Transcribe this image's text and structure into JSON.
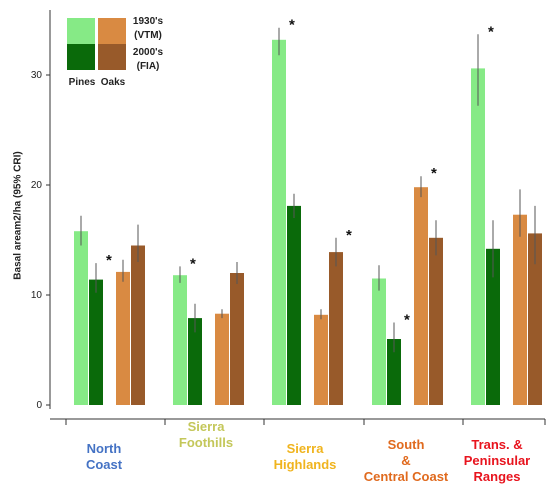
{
  "chart_data": {
    "type": "bar",
    "ylabel": "Basal aream2/ha (95% CRI)",
    "ylim": [
      0,
      35
    ],
    "yticks": [
      0,
      10,
      20,
      30
    ],
    "categories": [
      "North\nCoast",
      "Sierra\nFoothills",
      "Sierra\nHighlands",
      "South\n&\nCentral Coast",
      "Trans. &\nPeninsular\nRanges"
    ],
    "category_colors": [
      "#4472c4",
      "#c4c75a",
      "#f0b41e",
      "#e06a1e",
      "#e8141e"
    ],
    "series": [
      {
        "name": "Pines 1930's (VTM)",
        "color": "#86ea86",
        "values": [
          15.8,
          11.8,
          33.2,
          11.5,
          30.6
        ],
        "err_low": [
          14.5,
          11.1,
          31.8,
          10.4,
          27.2
        ],
        "err_high": [
          17.2,
          12.6,
          34.3,
          12.7,
          33.7
        ],
        "sig": [
          false,
          true,
          true,
          false,
          true
        ]
      },
      {
        "name": "Pines 2000's (FIA)",
        "color": "#0a6a0a",
        "values": [
          11.4,
          7.9,
          18.1,
          6.0,
          14.2
        ],
        "err_low": [
          10.2,
          6.6,
          17.0,
          4.8,
          11.6
        ],
        "err_high": [
          12.9,
          9.2,
          19.2,
          7.5,
          16.8
        ],
        "sig": [
          true,
          false,
          false,
          true,
          false
        ]
      },
      {
        "name": "Oaks 1930's (VTM)",
        "color": "#d98a42",
        "values": [
          12.1,
          8.3,
          8.2,
          19.8,
          17.3
        ],
        "err_low": [
          11.2,
          7.9,
          7.8,
          18.9,
          15.3
        ],
        "err_high": [
          13.2,
          8.7,
          8.7,
          20.8,
          19.6
        ],
        "sig": [
          false,
          true,
          false,
          true,
          false
        ]
      },
      {
        "name": "Oaks 2000's (FIA)",
        "color": "#985a2a",
        "values": [
          14.5,
          12.0,
          13.9,
          15.2,
          15.6
        ],
        "err_low": [
          13.0,
          11.0,
          12.6,
          13.6,
          12.8
        ],
        "err_high": [
          16.4,
          13.0,
          15.2,
          16.8,
          18.1
        ],
        "sig": [
          false,
          false,
          true,
          false,
          false
        ]
      }
    ],
    "legend": {
      "placement": "top-left",
      "group_labels": [
        "Pines",
        "Oaks"
      ],
      "period_labels": [
        "1930's\n(VTM)",
        "2000's\n(FIA)"
      ]
    },
    "significance_marker": "*",
    "grid": false
  }
}
